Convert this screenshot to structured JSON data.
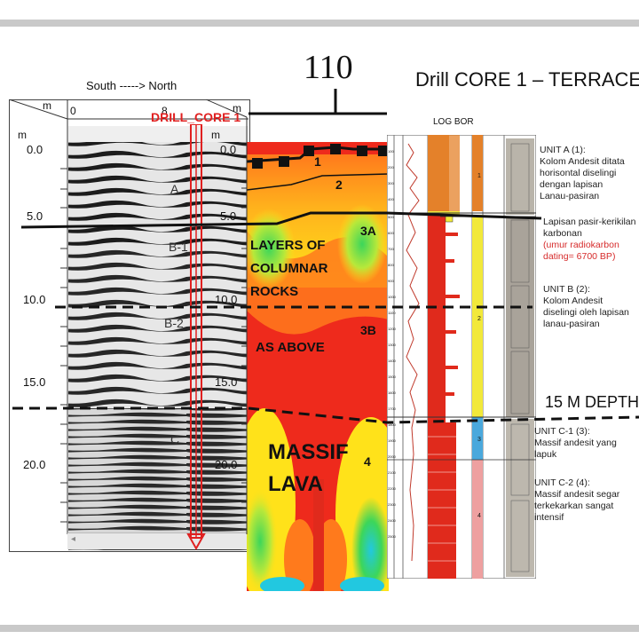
{
  "header": {
    "direction_label": "South -----> North",
    "section_number": "110",
    "core_title": "Drill CORE 1 – TERRACE",
    "log_title": "LOG BOR",
    "depth_callout": "15 M DEPTH"
  },
  "gpr": {
    "m_top": "m",
    "m_left": "m",
    "axis_zero": "0",
    "axis_eight": "8",
    "drill_label": "DRILL_CORE 1",
    "depths": [
      "0.0",
      "5.0",
      "10.0",
      "15.0",
      "20.0"
    ],
    "units": [
      "A",
      "B-1",
      "B-2",
      "C"
    ]
  },
  "resistivity": {
    "m_top": "m",
    "m_left": "m",
    "depths": [
      "0.0",
      "5.0",
      "10.0",
      "15.0",
      "20.0"
    ],
    "layer_numbers": [
      "1",
      "2",
      "3A",
      "3B",
      "4"
    ],
    "label_columnar": [
      "LAYERS OF",
      "COLUMNAR",
      "ROCKS"
    ],
    "label_as_above": "AS ABOVE",
    "label_massif": [
      "MASSIF",
      "LAVA"
    ]
  },
  "log": {
    "depth_ticks": [
      "100",
      "200",
      "300",
      "400",
      "500",
      "600",
      "700",
      "800",
      "900",
      "1000",
      "1100",
      "1200",
      "1300",
      "1400",
      "1500",
      "1600",
      "1700",
      "1800",
      "1900",
      "2000",
      "2100",
      "2200",
      "2300",
      "2400",
      "2500"
    ],
    "column_units": [
      "1",
      "2",
      "3",
      "4"
    ]
  },
  "descriptions": {
    "unit_a": [
      "UNIT A (1):",
      "Kolom Andesit ditata",
      "horisontal diselingi",
      "dengan  lapisan",
      "Lanau-pasiran"
    ],
    "carbon": [
      "Lapisan pasir-kerikilan",
      "karbonan"
    ],
    "carbon_red": [
      "(umur radiokarbon",
      "dating= 6700 BP)"
    ],
    "unit_b": [
      "UNIT B (2):",
      "Kolom Andesit",
      "diselingi oleh lapisan",
      "lanau-pasiran"
    ],
    "unit_c1": [
      "UNIT C-1 (3):",
      "Massif andesit yang",
      "lapuk"
    ],
    "unit_c2": [
      "UNIT C-2 (4):",
      "Massif andesit segar",
      "terkekarkan sangat",
      "intensif"
    ]
  },
  "colors": {
    "res_red": "#ee2a1c",
    "res_orange": "#ff7a1c",
    "res_yellow": "#ffe21a",
    "res_green": "#3cd65a",
    "res_cyan": "#22c8e0",
    "drill_red": "#e02020",
    "log_orange": "#e4812a",
    "log_yellow": "#f2e93a",
    "log_blue": "#4aa8dc",
    "log_pink": "#eea0a0"
  }
}
